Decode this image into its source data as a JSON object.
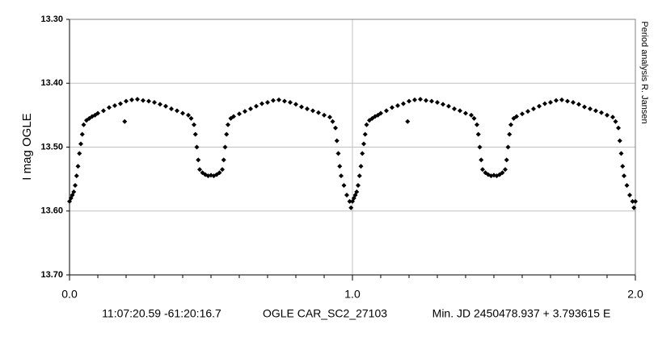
{
  "chart_data": {
    "type": "scatter",
    "ylabel": "I mag OGLE",
    "side_note": "Period analysis  R. Jansen",
    "footer": [
      "11:07:20.59 -61:20:16.7",
      "OGLE CAR_SC2_27103",
      "Min. JD 2450478.937 + 3.793615 E"
    ],
    "color": "#000000",
    "y_inverted": true,
    "grid": true,
    "xlim": [
      0,
      2
    ],
    "ylim": [
      13.3,
      13.7
    ],
    "xticks": [
      {
        "value": 0,
        "label": "0.0"
      },
      {
        "value": 1,
        "label": "1.0"
      },
      {
        "value": 2,
        "label": "2.0"
      }
    ],
    "xminorticks": [
      0.1,
      0.2,
      0.3,
      0.4,
      0.5,
      0.6,
      0.7,
      0.8,
      0.9,
      1.1,
      1.2,
      1.3,
      1.4,
      1.5,
      1.6,
      1.7,
      1.8,
      1.9
    ],
    "yticks": [
      {
        "value": 13.3,
        "label": "13.30"
      },
      {
        "value": 13.4,
        "label": "13.40"
      },
      {
        "value": 13.5,
        "label": "13.50"
      },
      {
        "value": 13.6,
        "label": "13.60"
      },
      {
        "value": 13.7,
        "label": "13.70"
      }
    ],
    "x": [
      0,
      0.005,
      0.01,
      0.015,
      0.02,
      0.025,
      0.03,
      0.035,
      0.04,
      0.045,
      0.05,
      0.06,
      0.07,
      0.08,
      0.09,
      0.1,
      0.12,
      0.14,
      0.16,
      0.18,
      0.195,
      0.2,
      0.22,
      0.24,
      0.26,
      0.28,
      0.3,
      0.32,
      0.34,
      0.36,
      0.38,
      0.4,
      0.42,
      0.43,
      0.44,
      0.445,
      0.45,
      0.455,
      0.46,
      0.47,
      0.48,
      0.49,
      0.5,
      0.51,
      0.52,
      0.53,
      0.54,
      0.545,
      0.55,
      0.555,
      0.56,
      0.57,
      0.58,
      0.6,
      0.62,
      0.64,
      0.66,
      0.68,
      0.7,
      0.72,
      0.74,
      0.76,
      0.78,
      0.8,
      0.82,
      0.84,
      0.86,
      0.88,
      0.9,
      0.92,
      0.93,
      0.94,
      0.945,
      0.95,
      0.955,
      0.96,
      0.97,
      0.98,
      0.99,
      0.995,
      1,
      1.005,
      1.01,
      1.015,
      1.02,
      1.025,
      1.03,
      1.035,
      1.04,
      1.045,
      1.05,
      1.06,
      1.07,
      1.08,
      1.09,
      1.1,
      1.12,
      1.14,
      1.16,
      1.18,
      1.195,
      1.2,
      1.22,
      1.24,
      1.26,
      1.28,
      1.3,
      1.32,
      1.34,
      1.36,
      1.38,
      1.4,
      1.42,
      1.43,
      1.44,
      1.445,
      1.45,
      1.455,
      1.46,
      1.47,
      1.48,
      1.49,
      1.5,
      1.51,
      1.52,
      1.53,
      1.54,
      1.545,
      1.55,
      1.555,
      1.56,
      1.57,
      1.58,
      1.6,
      1.62,
      1.64,
      1.66,
      1.68,
      1.7,
      1.72,
      1.74,
      1.76,
      1.78,
      1.8,
      1.82,
      1.84,
      1.86,
      1.88,
      1.9,
      1.92,
      1.93,
      1.94,
      1.945,
      1.95,
      1.955,
      1.96,
      1.97,
      1.98,
      1.99,
      1.995,
      2
    ],
    "values": [
      13.585,
      13.58,
      13.575,
      13.57,
      13.56,
      13.545,
      13.53,
      13.51,
      13.495,
      13.48,
      13.465,
      13.458,
      13.455,
      13.452,
      13.45,
      13.447,
      13.443,
      13.438,
      13.435,
      13.432,
      13.46,
      13.428,
      13.426,
      13.425,
      13.427,
      13.428,
      13.43,
      13.433,
      13.436,
      13.44,
      13.443,
      13.447,
      13.45,
      13.455,
      13.465,
      13.48,
      13.5,
      13.52,
      13.535,
      13.54,
      13.543,
      13.545,
      13.544,
      13.545,
      13.543,
      13.54,
      13.535,
      13.52,
      13.5,
      13.48,
      13.465,
      13.455,
      13.452,
      13.448,
      13.444,
      13.44,
      13.436,
      13.432,
      13.43,
      13.427,
      13.426,
      13.428,
      13.43,
      13.433,
      13.437,
      13.44,
      13.443,
      13.446,
      13.45,
      13.453,
      13.46,
      13.47,
      13.49,
      13.51,
      13.53,
      13.545,
      13.56,
      13.575,
      13.585,
      13.595,
      13.585,
      13.58,
      13.575,
      13.57,
      13.56,
      13.545,
      13.53,
      13.51,
      13.495,
      13.48,
      13.465,
      13.458,
      13.455,
      13.452,
      13.45,
      13.447,
      13.443,
      13.438,
      13.435,
      13.432,
      13.46,
      13.428,
      13.426,
      13.425,
      13.427,
      13.428,
      13.43,
      13.433,
      13.436,
      13.44,
      13.443,
      13.447,
      13.45,
      13.455,
      13.465,
      13.48,
      13.5,
      13.52,
      13.535,
      13.54,
      13.543,
      13.545,
      13.544,
      13.545,
      13.543,
      13.54,
      13.535,
      13.52,
      13.5,
      13.48,
      13.465,
      13.455,
      13.452,
      13.448,
      13.444,
      13.44,
      13.436,
      13.432,
      13.43,
      13.427,
      13.426,
      13.428,
      13.43,
      13.433,
      13.437,
      13.44,
      13.443,
      13.446,
      13.45,
      13.453,
      13.46,
      13.47,
      13.49,
      13.51,
      13.53,
      13.545,
      13.56,
      13.575,
      13.585,
      13.595,
      13.585
    ]
  }
}
